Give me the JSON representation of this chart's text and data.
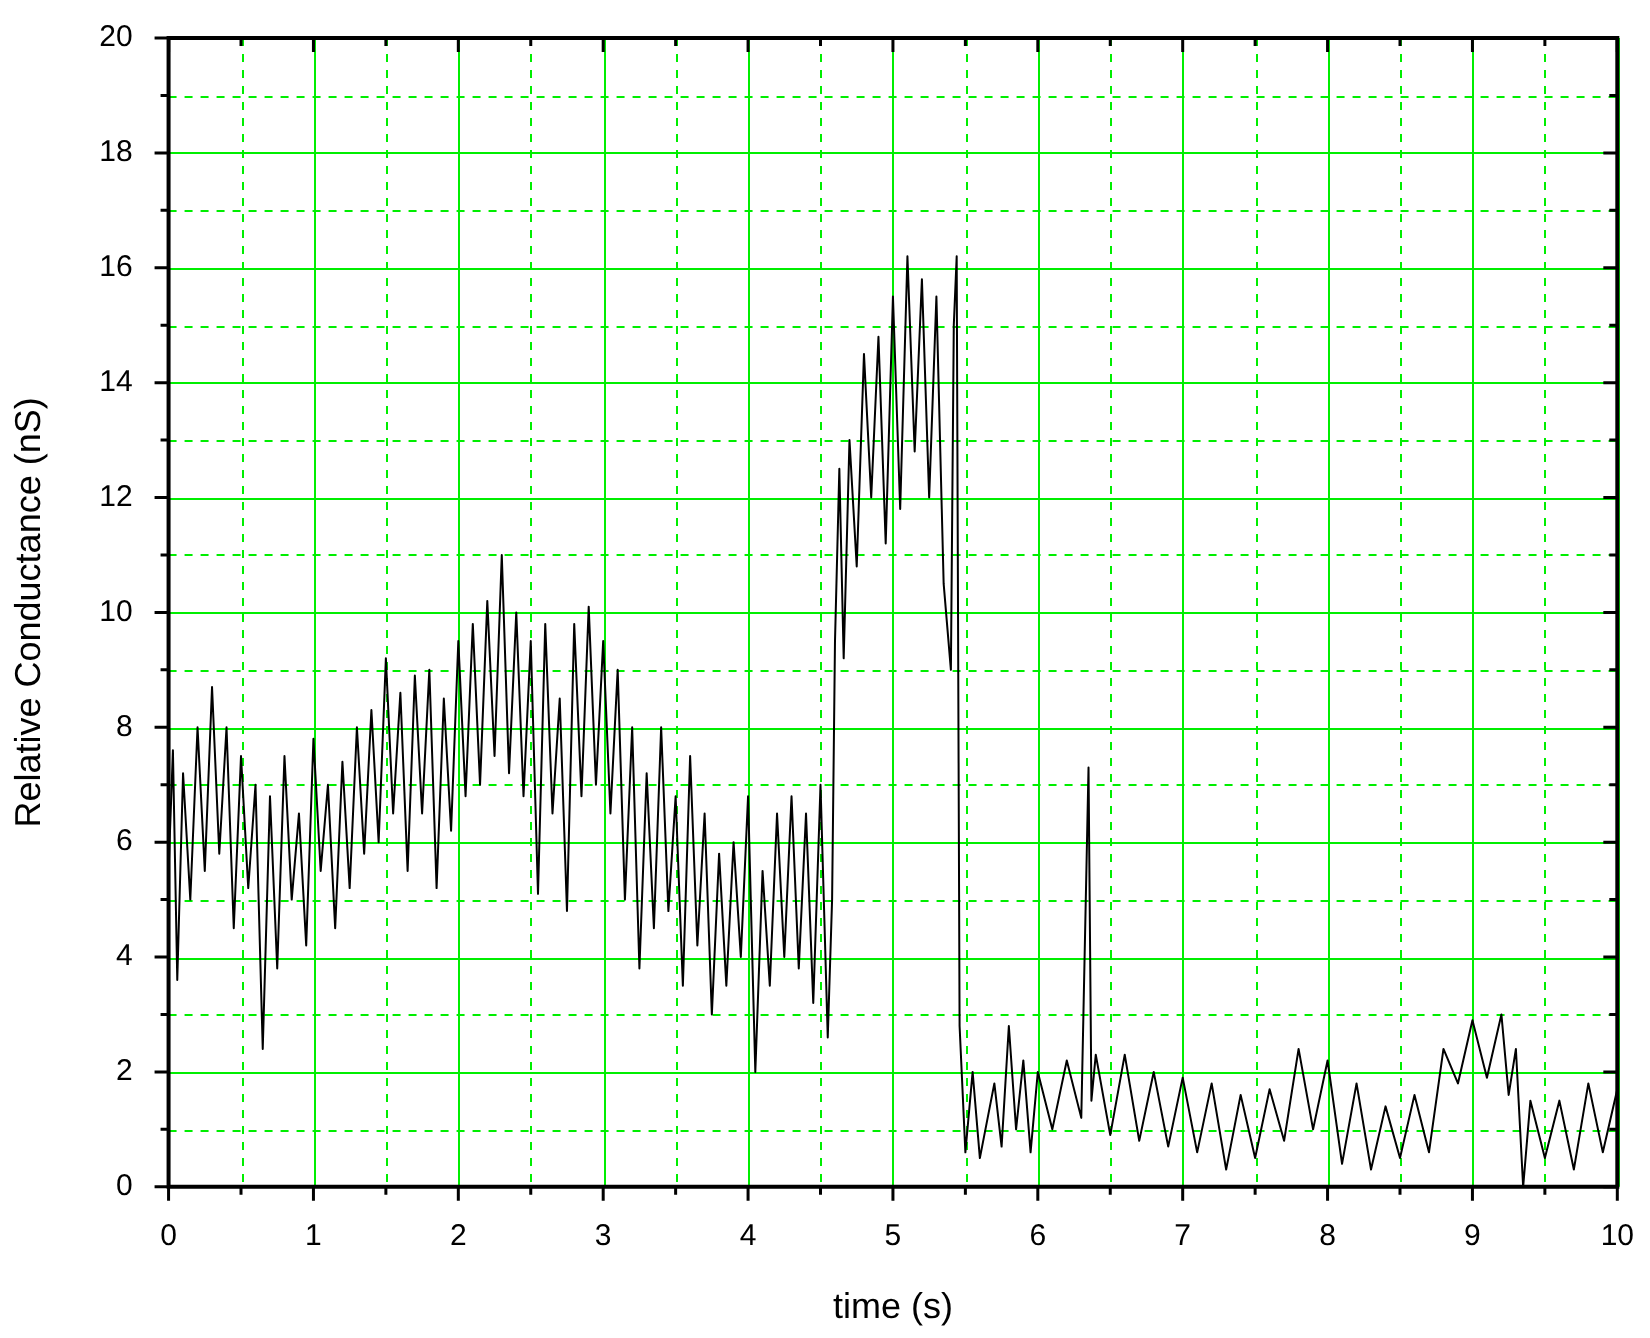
{
  "chart_data": {
    "type": "line",
    "xlabel": "time (s)",
    "ylabel": "Relative Conductance (nS)",
    "x": [
      0,
      0.03,
      0.06,
      0.1,
      0.15,
      0.2,
      0.25,
      0.3,
      0.35,
      0.4,
      0.45,
      0.5,
      0.55,
      0.6,
      0.65,
      0.7,
      0.75,
      0.8,
      0.85,
      0.9,
      0.95,
      1.0,
      1.05,
      1.1,
      1.15,
      1.2,
      1.25,
      1.3,
      1.35,
      1.4,
      1.45,
      1.5,
      1.55,
      1.6,
      1.65,
      1.7,
      1.75,
      1.8,
      1.85,
      1.9,
      1.95,
      2.0,
      2.05,
      2.1,
      2.15,
      2.2,
      2.25,
      2.3,
      2.35,
      2.4,
      2.45,
      2.5,
      2.55,
      2.6,
      2.65,
      2.7,
      2.75,
      2.8,
      2.85,
      2.9,
      2.95,
      3.0,
      3.05,
      3.1,
      3.15,
      3.2,
      3.25,
      3.3,
      3.35,
      3.4,
      3.45,
      3.5,
      3.55,
      3.6,
      3.65,
      3.7,
      3.75,
      3.8,
      3.85,
      3.9,
      3.95,
      4.0,
      4.05,
      4.1,
      4.15,
      4.2,
      4.25,
      4.3,
      4.35,
      4.4,
      4.45,
      4.5,
      4.55,
      4.58,
      4.6,
      4.63,
      4.66,
      4.7,
      4.75,
      4.8,
      4.85,
      4.9,
      4.95,
      5.0,
      5.05,
      5.1,
      5.15,
      5.2,
      5.25,
      5.3,
      5.35,
      5.4,
      5.42,
      5.44,
      5.46,
      5.5,
      5.55,
      5.6,
      5.7,
      5.75,
      5.8,
      5.85,
      5.9,
      5.95,
      6.0,
      6.1,
      6.2,
      6.3,
      6.35,
      6.37,
      6.4,
      6.5,
      6.6,
      6.7,
      6.8,
      6.9,
      7.0,
      7.1,
      7.2,
      7.3,
      7.4,
      7.5,
      7.6,
      7.7,
      7.8,
      7.9,
      8.0,
      8.1,
      8.2,
      8.3,
      8.4,
      8.5,
      8.6,
      8.7,
      8.8,
      8.9,
      9.0,
      9.1,
      9.2,
      9.25,
      9.3,
      9.35,
      9.4,
      9.5,
      9.6,
      9.7,
      9.8,
      9.9,
      10.0
    ],
    "series": [
      {
        "color": "#000000",
        "values": [
          5.5,
          7.6,
          3.6,
          7.2,
          5.0,
          8.0,
          5.5,
          8.7,
          5.8,
          8.0,
          4.5,
          7.5,
          5.2,
          7.0,
          2.4,
          6.8,
          3.8,
          7.5,
          5.0,
          6.5,
          4.2,
          7.8,
          5.5,
          7.0,
          4.5,
          7.4,
          5.2,
          8.0,
          5.8,
          8.3,
          6.0,
          9.2,
          6.5,
          8.6,
          5.5,
          8.9,
          6.5,
          9.0,
          5.2,
          8.5,
          6.2,
          9.5,
          6.8,
          9.8,
          7.0,
          10.2,
          7.5,
          11.0,
          7.2,
          10.0,
          6.8,
          9.5,
          5.1,
          9.8,
          6.5,
          8.5,
          4.8,
          9.8,
          6.8,
          10.1,
          7.0,
          9.5,
          6.5,
          9.0,
          5.0,
          8.0,
          3.8,
          7.2,
          4.5,
          8.0,
          4.8,
          6.8,
          3.5,
          7.5,
          4.2,
          6.5,
          3.0,
          5.8,
          3.5,
          6.0,
          4.0,
          6.8,
          2.0,
          5.5,
          3.5,
          6.5,
          4.0,
          6.8,
          3.8,
          6.5,
          3.2,
          7.0,
          2.6,
          5.0,
          9.5,
          12.5,
          9.2,
          13.0,
          10.8,
          14.5,
          12.0,
          14.8,
          11.2,
          15.5,
          11.8,
          16.2,
          12.8,
          15.8,
          12.0,
          15.5,
          10.5,
          9.0,
          15.0,
          16.2,
          2.8,
          0.6,
          2.0,
          0.5,
          1.8,
          0.7,
          2.8,
          1.0,
          2.2,
          0.6,
          2.0,
          1.0,
          2.2,
          1.2,
          7.3,
          1.5,
          2.3,
          0.9,
          2.3,
          0.8,
          2.0,
          0.7,
          1.9,
          0.6,
          1.8,
          0.3,
          1.6,
          0.5,
          1.7,
          0.8,
          2.4,
          1.0,
          2.2,
          0.4,
          1.8,
          0.3,
          1.4,
          0.5,
          1.6,
          0.6,
          2.4,
          1.8,
          2.9,
          1.9,
          3.0,
          1.6,
          2.4,
          0.0,
          1.5,
          0.5,
          1.5,
          0.3,
          1.8,
          0.6,
          1.7
        ]
      }
    ],
    "xlim": [
      0,
      10
    ],
    "ylim": [
      0,
      20
    ],
    "xticks": [
      0,
      {
        "value": 0.5,
        "label": null
      },
      1,
      {
        "value": 1.5,
        "label": null
      },
      2,
      {
        "value": 2.5,
        "label": null
      },
      3,
      {
        "value": 3.5,
        "label": null
      },
      4,
      {
        "value": 4.5,
        "label": null
      },
      5,
      {
        "value": 5.5,
        "label": null
      },
      6,
      {
        "value": 6.5,
        "label": null
      },
      7,
      {
        "value": 7.5,
        "label": null
      },
      8,
      {
        "value": 8.5,
        "label": null
      },
      9,
      {
        "value": 9.5,
        "label": null
      },
      10
    ],
    "yticks": [
      0,
      {
        "value": 1,
        "label": null
      },
      2,
      {
        "value": 3,
        "label": null
      },
      4,
      {
        "value": 5,
        "label": null
      },
      6,
      {
        "value": 7,
        "label": null
      },
      8,
      {
        "value": 9,
        "label": null
      },
      10,
      {
        "value": 11,
        "label": null
      },
      12,
      {
        "value": 13,
        "label": null
      },
      14,
      {
        "value": 15,
        "label": null
      },
      16,
      {
        "value": 17,
        "label": null
      },
      18,
      {
        "value": 19,
        "label": null
      },
      20
    ],
    "grid": true,
    "legend": false,
    "marker": "none",
    "line_style": "solid"
  }
}
